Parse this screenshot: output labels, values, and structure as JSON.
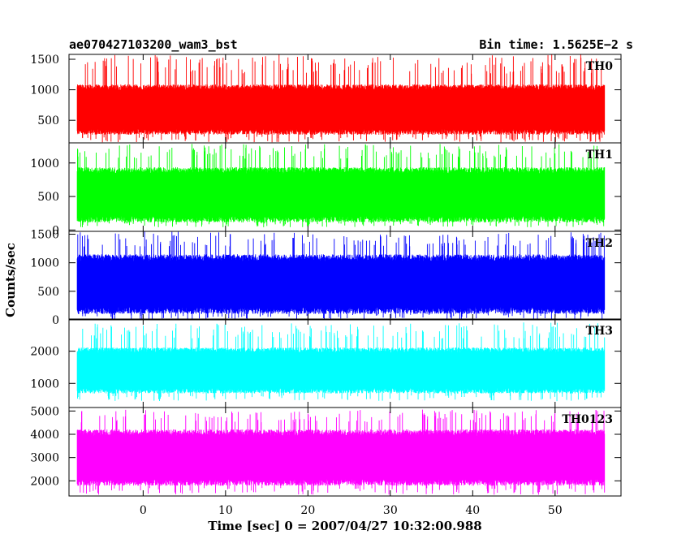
{
  "header": {
    "left_title": "ae070427103200_wam3_bst",
    "right_title": "Bin time: 1.5625E−2 s"
  },
  "axes": {
    "ylabel": "Counts/sec",
    "xlabel": "Time [sec] 0 = 2007/04/27 10:32:00.988"
  },
  "chart_data": {
    "type": "line",
    "x_range": [
      -8,
      56
    ],
    "xlim": [
      -9,
      58
    ],
    "x_ticks": [
      0,
      10,
      20,
      30,
      40,
      50
    ],
    "x_tick_labels": [
      "0",
      "10",
      "20",
      "30",
      "40",
      "50"
    ],
    "bin_time_s": 0.015625,
    "grid": false,
    "panels": [
      {
        "name": "TH0",
        "color": "#ff0000",
        "ylim": [
          130,
          1580
        ],
        "ticks": [
          500,
          1000,
          1500
        ],
        "tick_labels": [
          "500",
          "1000",
          "1500"
        ],
        "typical": [
          300,
          1050
        ],
        "spike_low": 140,
        "spike_high": 1580
      },
      {
        "name": "TH1",
        "color": "#00ff00",
        "ylim": [
          -20,
          1300
        ],
        "ticks": [
          0,
          500,
          1000
        ],
        "tick_labels": [
          "0",
          "500",
          "1000"
        ],
        "typical": [
          150,
          900
        ],
        "spike_low": 40,
        "spike_high": 1300
      },
      {
        "name": "TH2",
        "color": "#0000ff",
        "ylim": [
          0,
          1550
        ],
        "ticks": [
          0,
          500,
          1000,
          1500
        ],
        "tick_labels": [
          "0",
          "500",
          "1000",
          "1500"
        ],
        "typical": [
          150,
          1100
        ],
        "spike_low": 0,
        "spike_high": 1550
      },
      {
        "name": "TH3",
        "color": "#00ffff",
        "ylim": [
          250,
          3000
        ],
        "ticks": [
          1000,
          2000
        ],
        "tick_labels": [
          "1000",
          "2000"
        ],
        "typical": [
          750,
          2050
        ],
        "spike_low": 450,
        "spike_high": 2900
      },
      {
        "name": "TH0123",
        "color": "#ff00ff",
        "ylim": [
          1350,
          5150
        ],
        "ticks": [
          2000,
          3000,
          4000,
          5000
        ],
        "tick_labels": [
          "2000",
          "3000",
          "4000",
          "5000"
        ],
        "typical": [
          1900,
          4100
        ],
        "spike_low": 1400,
        "spike_high": 5100
      }
    ]
  }
}
